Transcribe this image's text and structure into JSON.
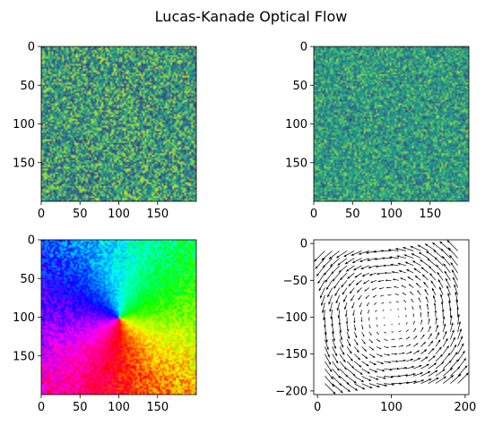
{
  "figure": {
    "title": "Lucas-Kanade Optical Flow"
  },
  "chart_data": [
    {
      "type": "heatmap",
      "title": "",
      "xlabel": "",
      "ylabel": "",
      "content": "random noise image (frame 1)",
      "colormap": "viridis",
      "image_size": [
        200,
        200
      ],
      "xlim": [
        0,
        200
      ],
      "ylim": [
        200,
        0
      ],
      "xticks": [
        0,
        50,
        100,
        150
      ],
      "yticks": [
        0,
        50,
        100,
        150
      ],
      "xtick_labels": [
        "0",
        "50",
        "100",
        "150"
      ],
      "ytick_labels": [
        "0",
        "50",
        "100",
        "150"
      ]
    },
    {
      "type": "heatmap",
      "title": "",
      "xlabel": "",
      "ylabel": "",
      "content": "rotated noise image (frame 2)",
      "colormap": "viridis",
      "image_size": [
        200,
        200
      ],
      "xlim": [
        0,
        200
      ],
      "ylim": [
        200,
        0
      ],
      "xticks": [
        0,
        50,
        100,
        150
      ],
      "yticks": [
        0,
        50,
        100,
        150
      ],
      "xtick_labels": [
        "0",
        "50",
        "100",
        "150"
      ],
      "ytick_labels": [
        "0",
        "50",
        "100",
        "150"
      ]
    },
    {
      "type": "heatmap",
      "title": "",
      "xlabel": "",
      "ylabel": "",
      "content": "flow direction encoded as hue (HSV)",
      "colormap": "hsv",
      "image_size": [
        200,
        200
      ],
      "center": [
        100,
        100
      ],
      "xlim": [
        0,
        200
      ],
      "ylim": [
        200,
        0
      ],
      "xticks": [
        0,
        50,
        100,
        150
      ],
      "yticks": [
        0,
        50,
        100,
        150
      ],
      "xtick_labels": [
        "0",
        "50",
        "100",
        "150"
      ],
      "ytick_labels": [
        "0",
        "50",
        "100",
        "150"
      ]
    },
    {
      "type": "quiver",
      "title": "",
      "xlabel": "",
      "ylabel": "",
      "content": "flow vectors of a rotation about the image center",
      "grid_step": 10,
      "grid_x_range": [
        10,
        190
      ],
      "grid_y_range": [
        -190,
        -10
      ],
      "center": [
        100,
        -100
      ],
      "rotation": "counter-clockwise",
      "xlim": [
        -5,
        205
      ],
      "ylim": [
        -205,
        5
      ],
      "xticks": [
        0,
        100,
        200
      ],
      "yticks": [
        0,
        -50,
        -100,
        -150,
        -200
      ],
      "xtick_labels": [
        "0",
        "100",
        "200"
      ],
      "ytick_labels": [
        "0",
        "−50",
        "−100",
        "−150",
        "−200"
      ]
    }
  ]
}
